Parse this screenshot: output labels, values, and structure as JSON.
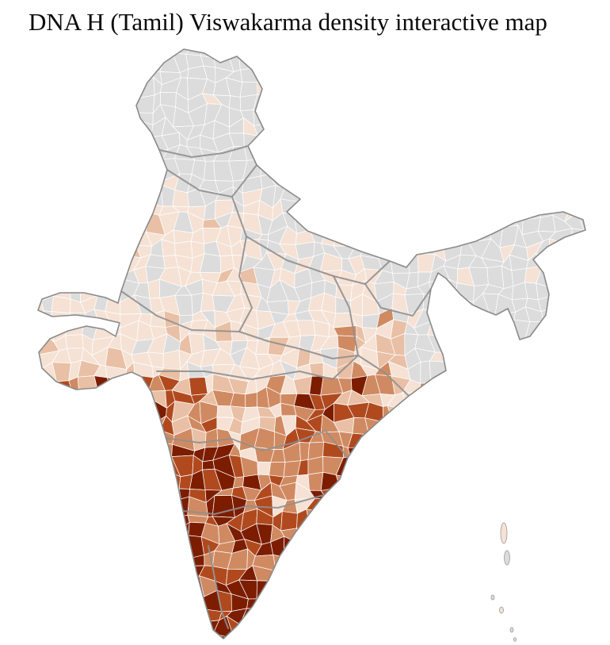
{
  "page": {
    "title": "DNA H (Tamil) Viswakarma density interactive map"
  },
  "map": {
    "colors": {
      "none": "#dcdcdc",
      "very_low": "#f5e2d5",
      "low": "#e9c0a5",
      "medium": "#d08a62",
      "high": "#b04a1e",
      "very_high": "#7d1d00"
    },
    "district_border_color": "#ffffff",
    "state_border_color": "#8f8f8f",
    "outline_color": "#8a8a8a",
    "sea_color": "#ffffff"
  }
}
